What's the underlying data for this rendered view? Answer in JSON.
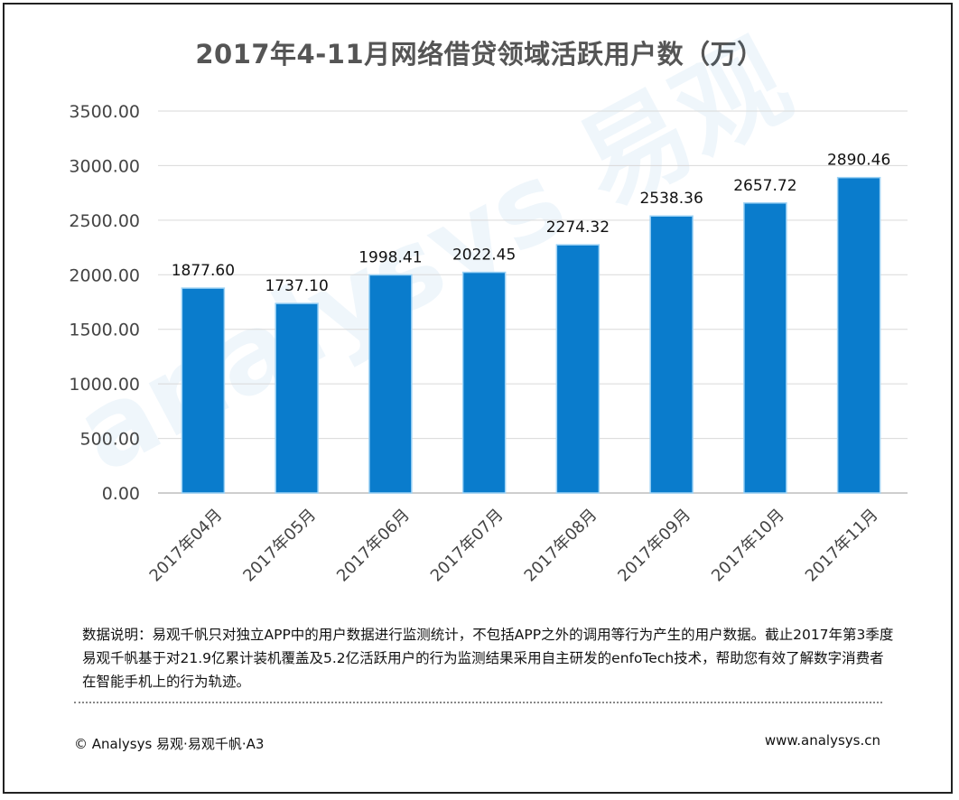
{
  "chart_data": {
    "type": "bar",
    "title": "2017年4-11月网络借贷领域活跃用户数（万）",
    "categories": [
      "2017年04月",
      "2017年05月",
      "2017年06月",
      "2017年07月",
      "2017年08月",
      "2017年09月",
      "2017年10月",
      "2017年11月"
    ],
    "values": [
      1877.6,
      1737.1,
      1998.41,
      2022.45,
      2274.32,
      2538.36,
      2657.72,
      2890.46
    ],
    "data_labels": [
      "1877.60",
      "1737.10",
      "1998.41",
      "2022.45",
      "2274.32",
      "2538.36",
      "2657.72",
      "2890.46"
    ],
    "ylim": [
      0,
      3500
    ],
    "yticks": [
      "0.00",
      "500.00",
      "1000.00",
      "1500.00",
      "2000.00",
      "2500.00",
      "3000.00",
      "3500.00"
    ],
    "xlabel": "",
    "ylabel": "",
    "grid": true,
    "bar_color": "#0a7ccc"
  },
  "note": "数据说明：易观千帆只对独立APP中的用户数据进行监测统计，不包括APP之外的调用等行为产生的用户数据。截止2017年第3季度易观千帆基于对21.9亿累计装机覆盖及5.2亿活跃用户的行为监测结果采用自主研发的enfoTech技术，帮助您有效了解数字消费者在智能手机上的行为轨迹。",
  "footer": {
    "copyright": "© Analysys 易观·易观千帆·A3",
    "website": "www.analysys.cn"
  }
}
